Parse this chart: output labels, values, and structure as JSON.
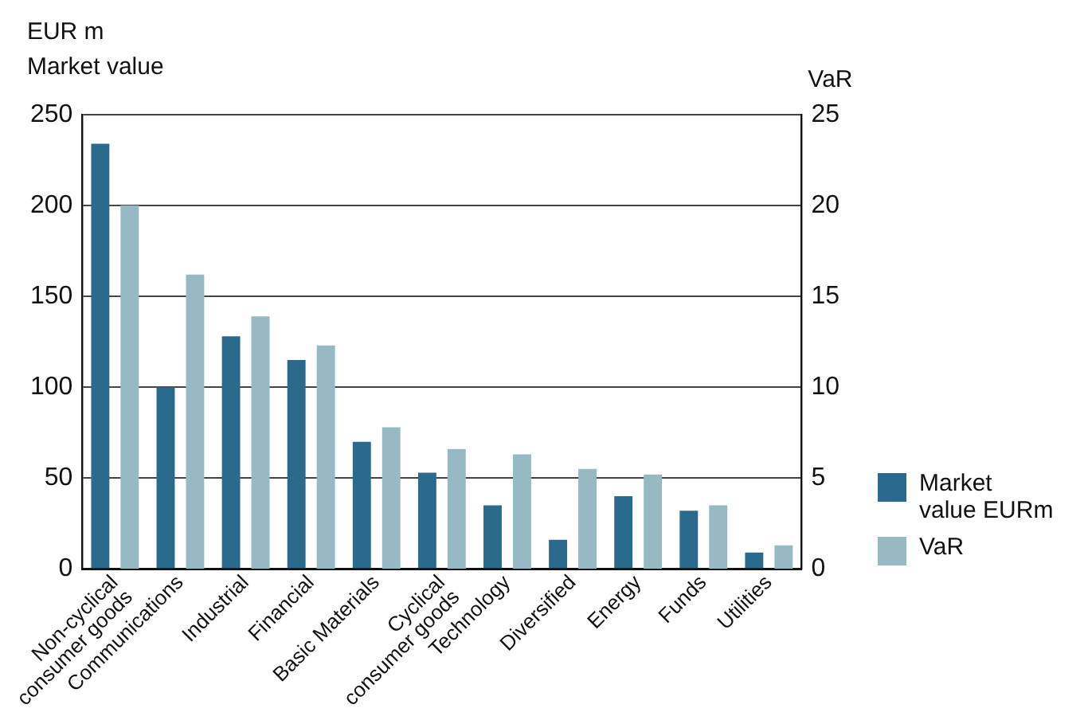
{
  "chart_data": {
    "type": "bar",
    "ylabel": "EUR m\nMarket value",
    "y2label": "VaR",
    "categories": [
      "Non-cyclical\nconsumer goods",
      "Communications",
      "Industrial",
      "Financial",
      "Basic Materials",
      "Cyclical\nconsumer goods",
      "Technology",
      "Diversified",
      "Energy",
      "Funds",
      "Utilities"
    ],
    "series": [
      {
        "name": "Market\nvalue EURm",
        "color": "#2a6a8c",
        "values": [
          234,
          100,
          128,
          115,
          70,
          53,
          35,
          16,
          40,
          32,
          9
        ]
      },
      {
        "name": "VaR",
        "color": "#96b9c3",
        "axis": "y2",
        "values": [
          20.0,
          16.2,
          13.9,
          12.3,
          7.8,
          6.6,
          6.3,
          5.5,
          5.2,
          3.5,
          1.3
        ]
      }
    ],
    "ylim": [
      0,
      250
    ],
    "yticks": [
      0,
      50,
      100,
      150,
      200,
      250
    ],
    "y2lim": [
      0,
      25
    ],
    "y2ticks": [
      0,
      5,
      10,
      15,
      20,
      25
    ],
    "grid": "y",
    "legend": "bottom right"
  }
}
